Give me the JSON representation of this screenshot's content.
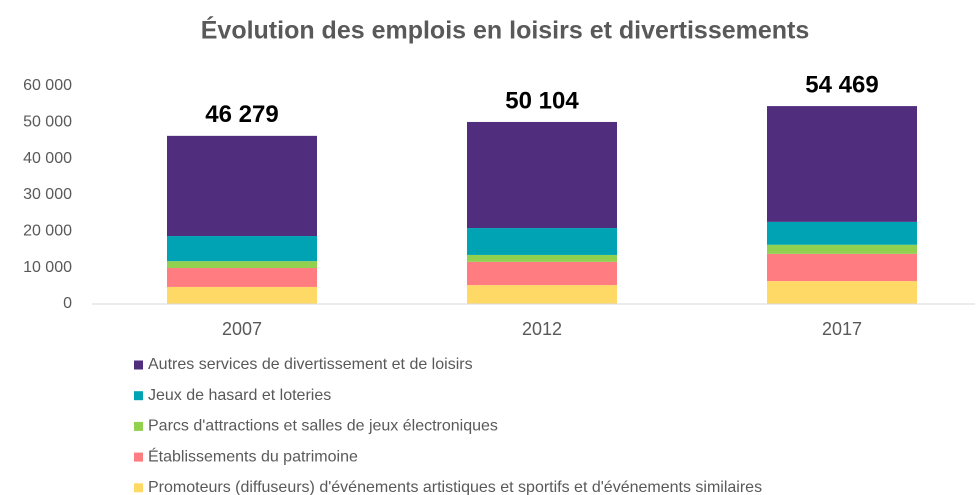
{
  "chart_data": {
    "type": "stacked_bar",
    "title": "Évolution des emplois en loisirs et divertissements",
    "categories": [
      "2007",
      "2012",
      "2017"
    ],
    "series": [
      {
        "name": "Promoteurs (diffuseurs) d'événements artistiques et sportifs et d'événements similaires",
        "color": "#ffd966",
        "values": [
          4700,
          5200,
          6300
        ]
      },
      {
        "name": "Établissements du patrimoine",
        "color": "#ff7c80",
        "values": [
          5200,
          6400,
          7500
        ]
      },
      {
        "name": "Parcs d'attractions et salles de jeux électroniques",
        "color": "#92d050",
        "values": [
          1900,
          1900,
          2500
        ]
      },
      {
        "name": "Jeux de hasard et loteries",
        "color": "#00a3b4",
        "values": [
          6900,
          7400,
          6300
        ]
      },
      {
        "name": "Autres services de divertissement et de loisirs",
        "color": "#512d7d",
        "values": [
          27579,
          29204,
          31869
        ]
      }
    ],
    "totals": [
      46279,
      50104,
      54469
    ],
    "total_labels": [
      "46 279",
      "50 104",
      "54 469"
    ],
    "ylim": [
      0,
      60000
    ],
    "yticks": [
      0,
      {
        "value": 10000,
        "label": "10 000"
      },
      {
        "value": 20000,
        "label": "20 000"
      },
      {
        "value": 30000,
        "label": "30 000"
      },
      {
        "value": 40000,
        "label": "40 000"
      },
      {
        "value": 50000,
        "label": "50 000"
      },
      {
        "value": 60000,
        "label": "60 000"
      }
    ],
    "grid": false
  }
}
